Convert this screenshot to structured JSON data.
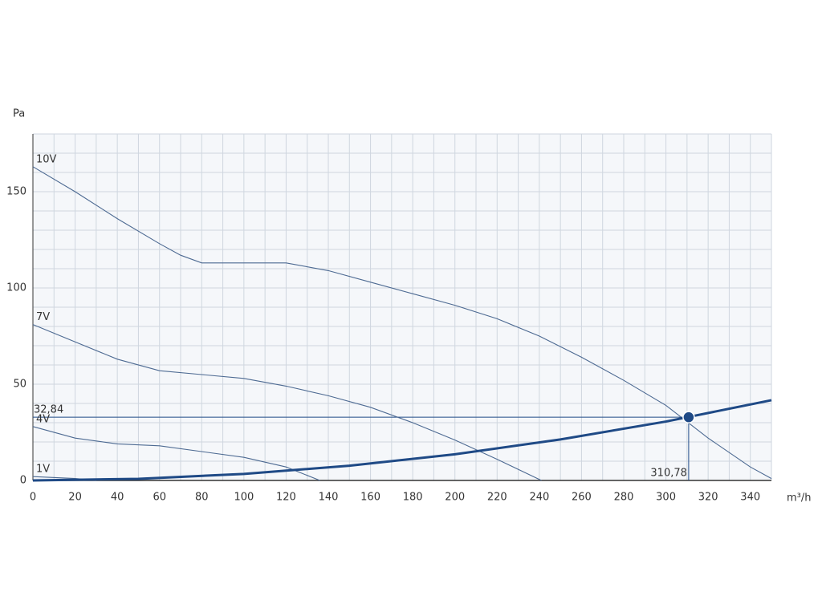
{
  "chart_data": {
    "type": "line",
    "y_label": "Pa",
    "x_label": "m³/h",
    "xlim": [
      0,
      350
    ],
    "ylim": [
      0,
      180
    ],
    "xticks": [
      0,
      20,
      40,
      60,
      80,
      100,
      120,
      140,
      160,
      180,
      200,
      220,
      240,
      260,
      280,
      300,
      320,
      340
    ],
    "yticks": [
      0,
      50,
      100,
      150
    ],
    "xgrid": [
      0,
      10,
      20,
      30,
      40,
      50,
      60,
      70,
      80,
      90,
      100,
      110,
      120,
      130,
      140,
      150,
      160,
      170,
      180,
      190,
      200,
      210,
      220,
      230,
      240,
      250,
      260,
      270,
      280,
      290,
      300,
      310,
      320,
      330,
      340,
      350
    ],
    "ygrid": [
      0,
      10,
      20,
      30,
      40,
      50,
      60,
      70,
      80,
      90,
      100,
      110,
      120,
      130,
      140,
      150,
      160,
      170,
      180
    ],
    "series": [
      {
        "name": "10V",
        "color": "#4d6a92",
        "x": [
          0,
          20,
          40,
          60,
          70,
          80,
          100,
          120,
          140,
          160,
          180,
          200,
          220,
          240,
          260,
          280,
          300,
          320,
          340,
          350
        ],
        "values": [
          163,
          150,
          136,
          123,
          117,
          113,
          113,
          113,
          109,
          103,
          97,
          91,
          84,
          75,
          64,
          52,
          39,
          22,
          7,
          1
        ]
      },
      {
        "name": "7V",
        "color": "#4d6a92",
        "x": [
          0,
          20,
          40,
          60,
          80,
          100,
          120,
          140,
          160,
          180,
          200,
          220,
          241
        ],
        "values": [
          81,
          72,
          63,
          57,
          55,
          53,
          49,
          44,
          38,
          30,
          21,
          11,
          0
        ]
      },
      {
        "name": "4V",
        "color": "#4d6a92",
        "x": [
          0,
          20,
          40,
          60,
          80,
          100,
          120,
          136
        ],
        "values": [
          28,
          22,
          19,
          18,
          15,
          12,
          7,
          0
        ]
      },
      {
        "name": "1V",
        "color": "#4d6a92",
        "x": [
          0,
          20,
          30
        ],
        "values": [
          2,
          1,
          0
        ]
      }
    ],
    "system_curve": {
      "color": "#1f4a86",
      "x": [
        0,
        50,
        100,
        150,
        200,
        250,
        300,
        350
      ],
      "values": [
        0,
        0.85,
        3.4,
        7.65,
        13.6,
        21.3,
        30.6,
        41.7
      ]
    },
    "operating_point": {
      "x": 310.78,
      "y": 32.84,
      "x_value_label": "310,78",
      "y_value_label": "32,84",
      "color": "#1f4a86"
    }
  }
}
